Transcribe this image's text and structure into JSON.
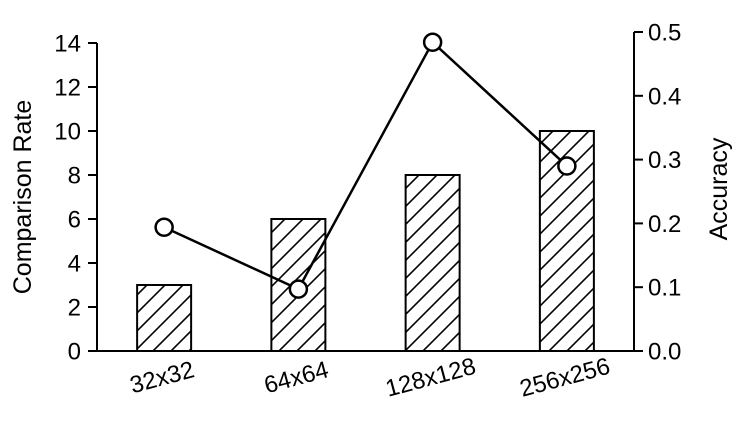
{
  "chart_data": {
    "type": "bar+line",
    "categories": [
      "32x32",
      "64x64",
      "128x128",
      "256x256"
    ],
    "series": [
      {
        "name": "Comparison Rate",
        "type": "bar",
        "axis": "left",
        "values": [
          3,
          6,
          8,
          10
        ]
      },
      {
        "name": "Accuracy",
        "type": "line",
        "axis": "right",
        "values": [
          0.194,
          0.097,
          0.484,
          0.29
        ]
      }
    ],
    "ylabel_left": "Comparison Rate",
    "ylabel_right": "Accuracy",
    "ylim_left": [
      0,
      14
    ],
    "yticks_left": [
      "0",
      "2",
      "4",
      "6",
      "8",
      "10",
      "12",
      "14"
    ],
    "ylim_right": [
      0,
      0.5
    ],
    "yticks_right": [
      "0.0",
      "0.1",
      "0.2",
      "0.3",
      "0.4",
      "0.5"
    ],
    "bar_pattern": "diagonal-hatch",
    "marker": "open-circle",
    "grid": false
  }
}
